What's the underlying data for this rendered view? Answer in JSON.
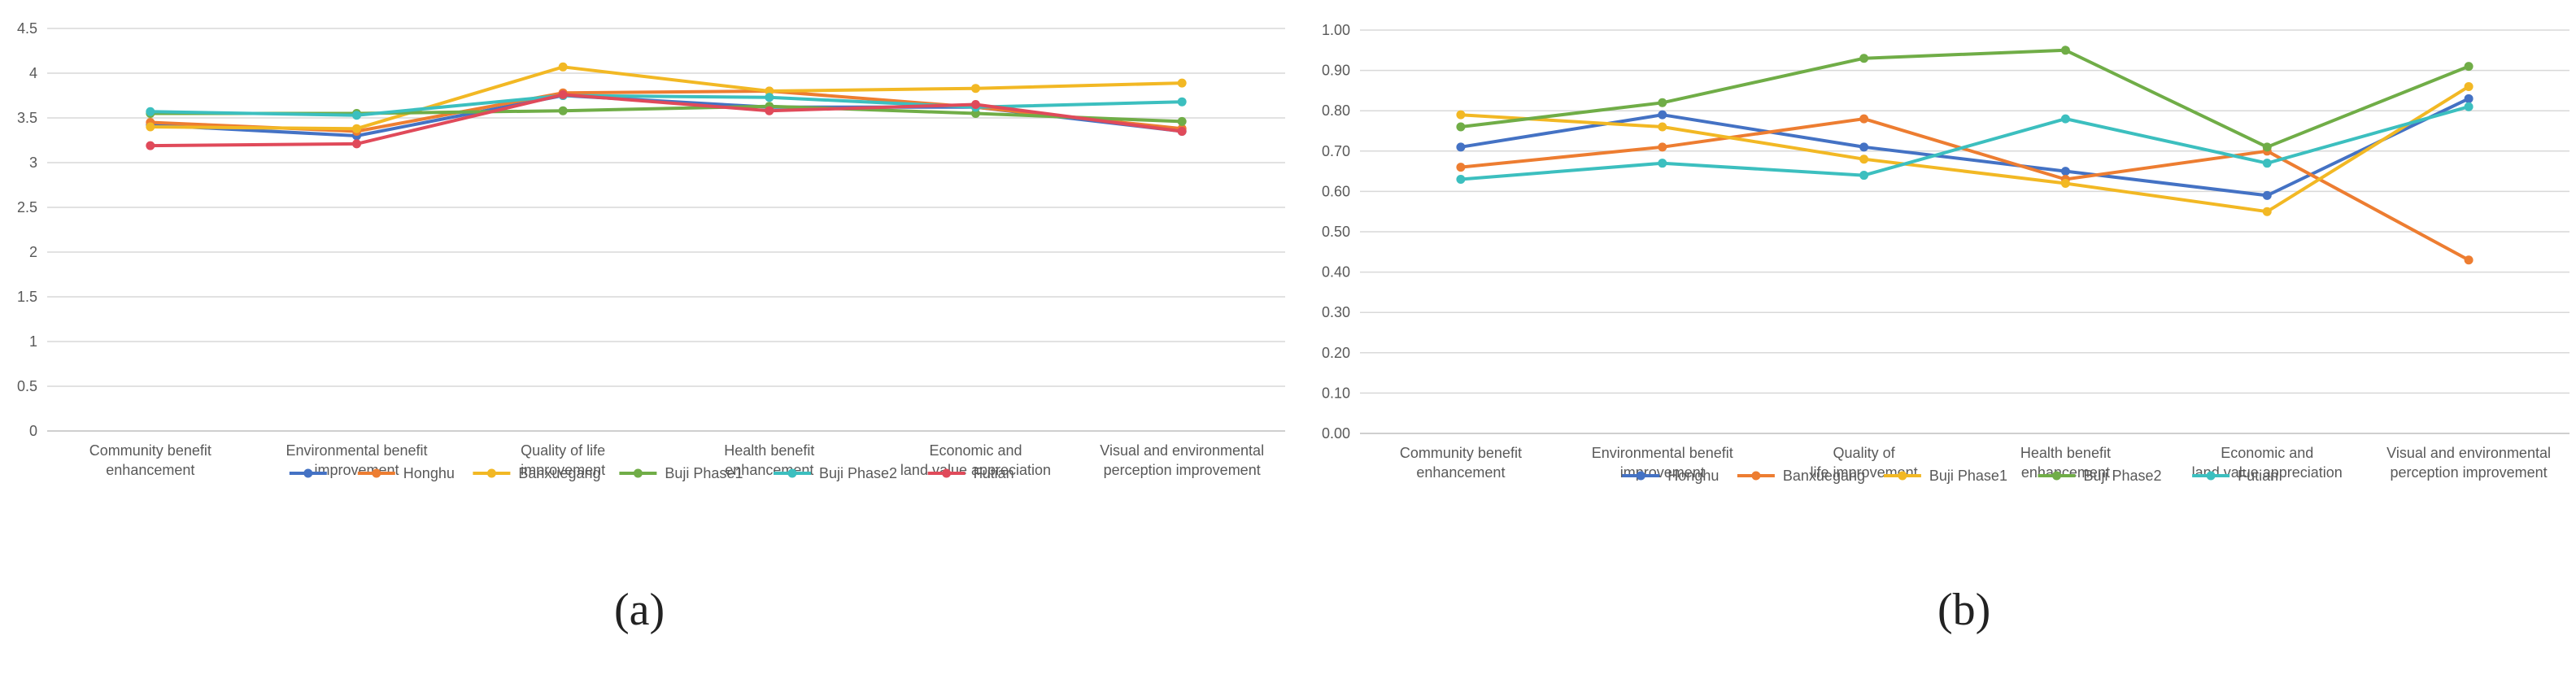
{
  "chart_data": [
    {
      "type": "line",
      "panel": "(a)",
      "categories": [
        [
          "Community benefit",
          "enhancement"
        ],
        [
          "Environmental benefit",
          "improvement"
        ],
        [
          "Quality of life",
          "improvement"
        ],
        [
          "Health benefit",
          "enhancement"
        ],
        [
          "Economic and",
          "land value appreciation"
        ],
        [
          "Visual and environmental",
          "perception improvement"
        ]
      ],
      "yticks": [
        "0",
        "0.5",
        "1",
        "1.5",
        "2",
        "2.5",
        "3",
        "3.5",
        "4",
        "4.5"
      ],
      "ylim": [
        0,
        4.5
      ],
      "grid": true,
      "legend_position": "bottom",
      "series": [
        {
          "name": "",
          "color": "#4472c4",
          "values": [
            3.42,
            3.3,
            3.75,
            3.62,
            3.62,
            3.35
          ]
        },
        {
          "name": "Honghu",
          "color": "#ed7d31",
          "values": [
            3.45,
            3.35,
            3.78,
            3.8,
            3.62,
            3.38
          ]
        },
        {
          "name": "Banxuegang",
          "color": "#f2b824",
          "values": [
            3.4,
            3.38,
            4.07,
            3.8,
            3.83,
            3.89
          ]
        },
        {
          "name": "Buji Phase1",
          "color": "#70ad47",
          "values": [
            3.55,
            3.55,
            3.58,
            3.63,
            3.55,
            3.46
          ]
        },
        {
          "name": "Buji Phase2",
          "color": "#3cbfbf",
          "values": [
            3.57,
            3.53,
            3.75,
            3.73,
            3.62,
            3.68
          ]
        },
        {
          "name": "Futian",
          "color": "#e04a5a",
          "values": [
            3.19,
            3.21,
            3.76,
            3.58,
            3.65,
            3.35
          ]
        }
      ]
    },
    {
      "type": "line",
      "panel": "(b)",
      "categories": [
        [
          "Community benefit",
          "enhancement"
        ],
        [
          "Environmental benefit",
          "improvement"
        ],
        [
          "Quality of",
          "life improvement"
        ],
        [
          "Health benefit",
          "enhancement"
        ],
        [
          "Economic and",
          "land value appreciation"
        ],
        [
          "Visual and environmental",
          "perception improvement"
        ]
      ],
      "yticks": [
        "0.00",
        "0.10",
        "0.20",
        "0.30",
        "0.40",
        "0.50",
        "0.60",
        "0.70",
        "0.80",
        "0.90",
        "1.00"
      ],
      "ylim": [
        0,
        1.0
      ],
      "grid": true,
      "legend_position": "bottom",
      "series": [
        {
          "name": "Honghu",
          "color": "#4472c4",
          "values": [
            0.71,
            0.79,
            0.71,
            0.65,
            0.59,
            0.83
          ]
        },
        {
          "name": "Banxuegang",
          "color": "#ed7d31",
          "values": [
            0.66,
            0.71,
            0.78,
            0.63,
            0.7,
            0.43
          ]
        },
        {
          "name": "Buji Phase1",
          "color": "#f2b824",
          "values": [
            0.79,
            0.76,
            0.68,
            0.62,
            0.55,
            0.86
          ]
        },
        {
          "name": "Buji Phase2",
          "color": "#70ad47",
          "values": [
            0.76,
            0.82,
            0.93,
            0.95,
            0.71,
            0.91
          ]
        },
        {
          "name": "Futian",
          "color": "#3cbfbf",
          "values": [
            0.63,
            0.67,
            0.64,
            0.78,
            0.67,
            0.81
          ]
        }
      ]
    }
  ],
  "panel_labels": [
    "(a)",
    "(b)"
  ]
}
